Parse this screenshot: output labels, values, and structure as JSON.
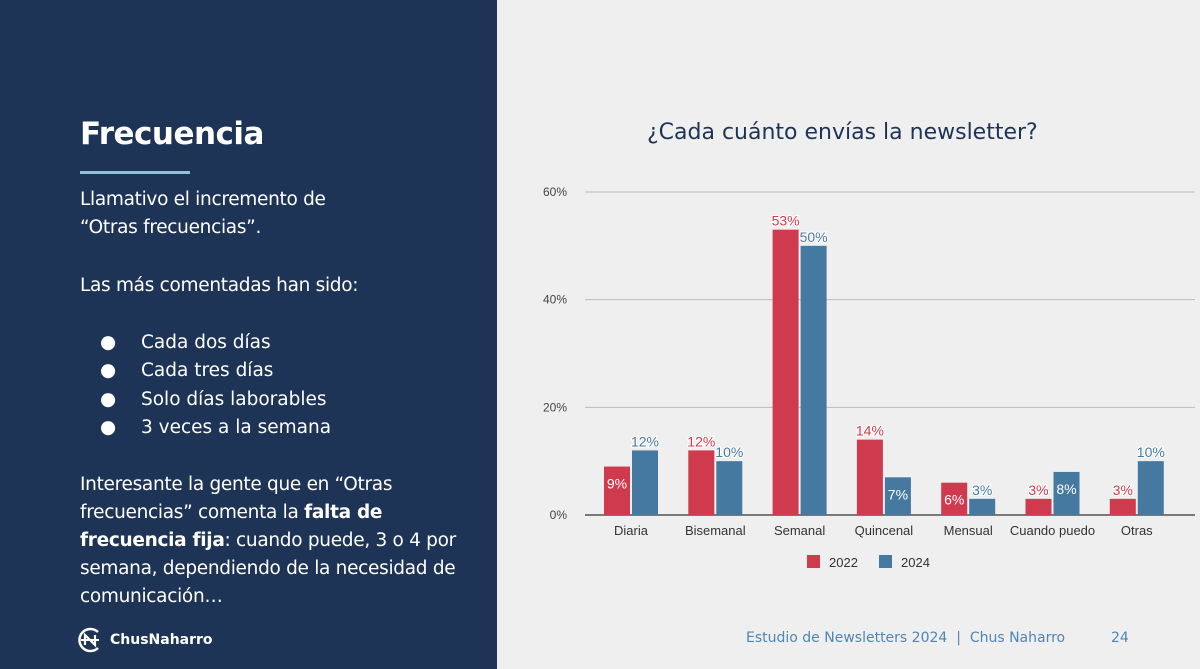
{
  "left": {
    "title": "Frecuencia",
    "intro": [
      "Llamativo el incremento de",
      "“Otras frecuencias”."
    ],
    "list_heading": "Las más comentadas han sido:",
    "bullets": [
      "Cada dos días",
      "Cada tres días",
      "Solo días laborables",
      "3 veces a la semana"
    ],
    "closing_prefix": "Interesante la gente que en “Otras frecuencias” comenta la ",
    "closing_bold": "falta de frecuencia fija",
    "closing_suffix": ": cuando puede, 3 o 4 por semana, dependiendo de la necesidad de comunicación…",
    "logo_text": "ChusNaharro"
  },
  "footer": {
    "text": "Estudio de Newsletters 2024  |  Chus Naharro",
    "page": "24"
  },
  "chart_data": {
    "type": "bar",
    "title": "¿Cada cuánto envías la newsletter?",
    "categories": [
      "Diaria",
      "Bisemanal",
      "Semanal",
      "Quincenal",
      "Mensual",
      "Cuando puedo",
      "Otras"
    ],
    "series": [
      {
        "name": "2022",
        "color": "#cf3a4e",
        "values": [
          9,
          12,
          53,
          14,
          6,
          3,
          3
        ]
      },
      {
        "name": "2024",
        "color": "#46799f",
        "values": [
          12,
          10,
          50,
          7,
          3,
          8,
          10
        ]
      }
    ],
    "ylim": [
      0,
      60
    ],
    "yticks": [
      "0%",
      "20%",
      "40%",
      "60%"
    ],
    "ytick_values": [
      0,
      20,
      40,
      60
    ],
    "value_format": "%",
    "grid": true,
    "legend": "bottom"
  }
}
